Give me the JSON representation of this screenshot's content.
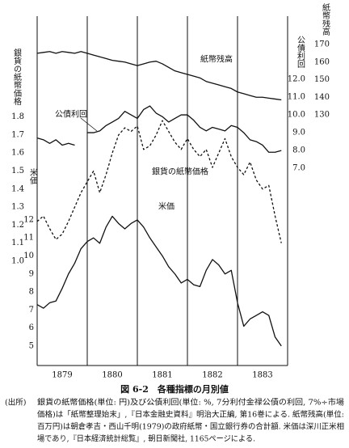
{
  "chart_data": {
    "type": "line",
    "title": "図 6-2　各種指標の月別値",
    "x": [
      1879,
      1879.125,
      1879.25,
      1879.375,
      1879.5,
      1879.625,
      1879.75,
      1879.875,
      1880,
      1880.125,
      1880.25,
      1880.375,
      1880.5,
      1880.625,
      1880.75,
      1880.875,
      1881,
      1881.125,
      1881.25,
      1881.375,
      1881.5,
      1881.625,
      1881.75,
      1881.875,
      1882,
      1882.125,
      1882.25,
      1882.375,
      1882.5,
      1882.625,
      1882.75,
      1882.875,
      1883,
      1883.125,
      1883.25,
      1883.375,
      1883.5,
      1883.625,
      1883.75,
      1883.875
    ],
    "xlim": [
      1879,
      1884
    ],
    "xticks": [
      {
        "value": 1879.5,
        "label": "1879"
      },
      {
        "value": 1880.5,
        "label": "1880"
      },
      {
        "value": 1881.5,
        "label": "1881"
      },
      {
        "value": 1882.5,
        "label": "1882"
      },
      {
        "value": 1883.5,
        "label": "1883"
      }
    ],
    "year_lines": [
      1880,
      1881,
      1882,
      1883
    ],
    "axes": {
      "silver": {
        "title": "銀貨の紙幣価格",
        "lim": [
          0.42,
          2.36
        ],
        "ticks": [
          {
            "value": 1,
            "label": "1.0"
          },
          1.1,
          1.2,
          1.3,
          1.4,
          1.5,
          1.6,
          1.7,
          1.8
        ]
      },
      "rice": {
        "title": "米価",
        "lim": [
          3.92,
          23.3
        ],
        "ticks": [
          5,
          6,
          7,
          8,
          9,
          10,
          11,
          12
        ]
      },
      "yield": {
        "title": "公債利回",
        "lim": [
          -4.09,
          15.55
        ],
        "ticks": [
          {
            "value": 7,
            "label": "7.0"
          },
          {
            "value": 8,
            "label": "8.0"
          },
          {
            "value": 9,
            "label": "9.0"
          },
          {
            "value": 10,
            "label": "10.0"
          },
          {
            "value": 11,
            "label": "11.0"
          },
          {
            "value": 12,
            "label": "12.0"
          }
        ]
      },
      "balance": {
        "title": "紙幣残高",
        "lim": [
          -12.5,
          186.1
        ],
        "ticks": [
          130,
          140,
          150,
          160,
          170
        ]
      }
    },
    "series": [
      {
        "name": "紙幣残高",
        "axis": "balance",
        "color": "#111111",
        "dashed": false,
        "values": [
          165,
          165.5,
          166,
          165,
          166,
          165.5,
          165,
          166,
          165,
          164,
          163,
          162,
          161,
          160.5,
          160,
          159,
          158,
          159,
          160,
          160.5,
          159,
          157,
          155,
          154,
          153,
          152,
          151,
          149,
          148,
          147,
          146,
          145,
          143,
          142,
          141,
          140,
          140,
          139.5,
          139,
          138.5
        ]
      },
      {
        "name": "公債利回",
        "axis": "yield",
        "color": "#111111",
        "dashed": false,
        "values": [
          8.7,
          8.6,
          8.4,
          8.6,
          8.3,
          8.4,
          8.3,
          null,
          9.0,
          9.0,
          9.1,
          9.4,
          9.6,
          9.8,
          10.2,
          10.0,
          9.8,
          10.3,
          10.5,
          10.1,
          9.9,
          9.6,
          9.8,
          10.0,
          10.0,
          9.7,
          9.3,
          9.1,
          9.3,
          9.2,
          9.1,
          9.4,
          9.3,
          9.0,
          8.6,
          8.5,
          8.3,
          7.9,
          7.9,
          8.0
        ]
      },
      {
        "name": "銀貨の紙幣価格",
        "axis": "silver",
        "color": "#111111",
        "dashed": true,
        "values": [
          1.22,
          1.25,
          1.18,
          1.12,
          1.15,
          1.22,
          1.3,
          1.38,
          1.44,
          1.5,
          1.38,
          1.48,
          1.6,
          1.7,
          1.74,
          1.72,
          1.75,
          1.62,
          1.64,
          1.7,
          1.78,
          1.72,
          1.66,
          1.62,
          1.68,
          1.62,
          1.58,
          1.62,
          1.52,
          1.6,
          1.68,
          1.58,
          1.52,
          1.48,
          1.55,
          1.45,
          1.4,
          1.42,
          1.25,
          1.1
        ]
      },
      {
        "name": "米価",
        "axis": "rice",
        "color": "#111111",
        "dashed": false,
        "values": [
          7.3,
          7.1,
          7.4,
          7.5,
          8.2,
          9.0,
          9.6,
          10.4,
          10.8,
          11.0,
          10.7,
          11.6,
          12.2,
          11.8,
          11.5,
          11.8,
          12.0,
          11.6,
          11.0,
          10.5,
          10.0,
          9.4,
          9.0,
          8.5,
          8.7,
          8.4,
          8.3,
          9.2,
          9.8,
          9.5,
          9.0,
          9.2,
          7.4,
          6.1,
          6.5,
          6.7,
          6.9,
          6.7,
          5.5,
          5.0
        ]
      }
    ],
    "source_label": "(出所)",
    "source_lines": [
      "銀貨の紙幣価格(単位: 円)及び公債利回(単位: %, 7分利付金禄公債の利回, 7%÷市場",
      "価格)は「紙幣整理始末」,『日本金融史資料』明治大正編, 第16巻による. 紙幣残高(単位:",
      "百万円)は朝倉孝吉・西山千明(1979)の政府紙幣・国立銀行券の合計額. 米価は深川正米相",
      "場であり,『日本経済統計総覧』, 朝日新聞社, 1165ページによる."
    ]
  }
}
